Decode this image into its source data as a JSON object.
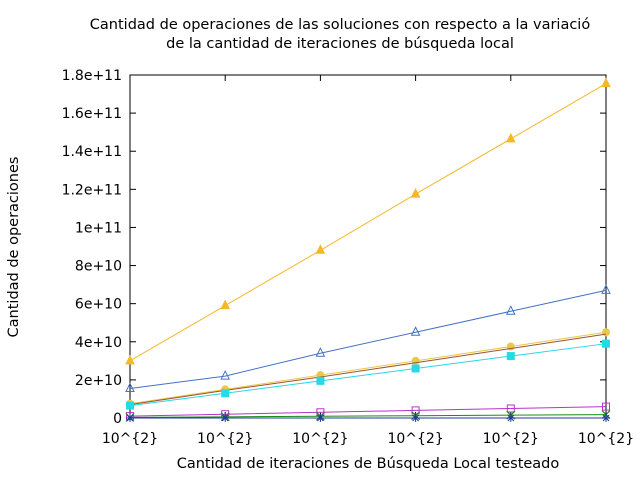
{
  "chart_data": {
    "type": "line",
    "title_line1": "Cantidad de operaciones de las soluciones con respecto a la variació",
    "title_line2": "de la cantidad de iteraciones de búsqueda local",
    "xlabel": "Cantidad de iteraciones de Búsqueda Local testeado",
    "ylabel": "Cantidad de operaciones",
    "categories": [
      "10^{2}",
      "10^{2}",
      "10^{2}",
      "10^{2}",
      "10^{2}",
      "10^{2}"
    ],
    "ylim": [
      0,
      180000000000
    ],
    "yticks": [
      {
        "value": 0,
        "label": "0"
      },
      {
        "value": 20000000000,
        "label": "2e+10"
      },
      {
        "value": 40000000000,
        "label": "4e+10"
      },
      {
        "value": 60000000000,
        "label": "6e+10"
      },
      {
        "value": 80000000000,
        "label": "8e+10"
      },
      {
        "value": 100000000000,
        "label": "1e+11"
      },
      {
        "value": 120000000000,
        "label": "1.2e+11"
      },
      {
        "value": 140000000000,
        "label": "1.4e+11"
      },
      {
        "value": 160000000000,
        "label": "1.6e+11"
      },
      {
        "value": 180000000000,
        "label": "1.8e+11"
      }
    ],
    "grid": false,
    "legend": "none",
    "series": [
      {
        "color": "#f4b829",
        "marker": "triangle-filled",
        "values": [
          30000000000,
          59000000000,
          88000000000,
          117500000000,
          146500000000,
          175500000000
        ]
      },
      {
        "color": "#4472c4",
        "marker": "triangle-open",
        "values": [
          15500000000,
          22000000000,
          34000000000,
          45000000000,
          56000000000,
          67000000000
        ]
      },
      {
        "color": "#e8c84a",
        "marker": "circle-filled",
        "values": [
          7500000000,
          15000000000,
          22500000000,
          30000000000,
          37500000000,
          45000000000
        ]
      },
      {
        "color": "#a0522d",
        "marker": "none",
        "values": [
          7000000000,
          14500000000,
          21500000000,
          29000000000,
          36500000000,
          44000000000
        ]
      },
      {
        "color": "#26d9e6",
        "marker": "square-filled",
        "values": [
          6500000000,
          13000000000,
          19500000000,
          26000000000,
          32500000000,
          39000000000
        ]
      },
      {
        "color": "#b833cc",
        "marker": "square-open",
        "values": [
          1000000000,
          2000000000,
          3000000000,
          4000000000,
          5000000000,
          6000000000
        ]
      },
      {
        "color": "#1a8a1a",
        "marker": "cross",
        "values": [
          300000000,
          600000000,
          900000000,
          1200000000,
          1500000000,
          1800000000
        ]
      },
      {
        "color": "#1f3a9e",
        "marker": "star",
        "values": [
          0,
          0,
          0,
          0,
          0,
          0
        ]
      }
    ]
  }
}
